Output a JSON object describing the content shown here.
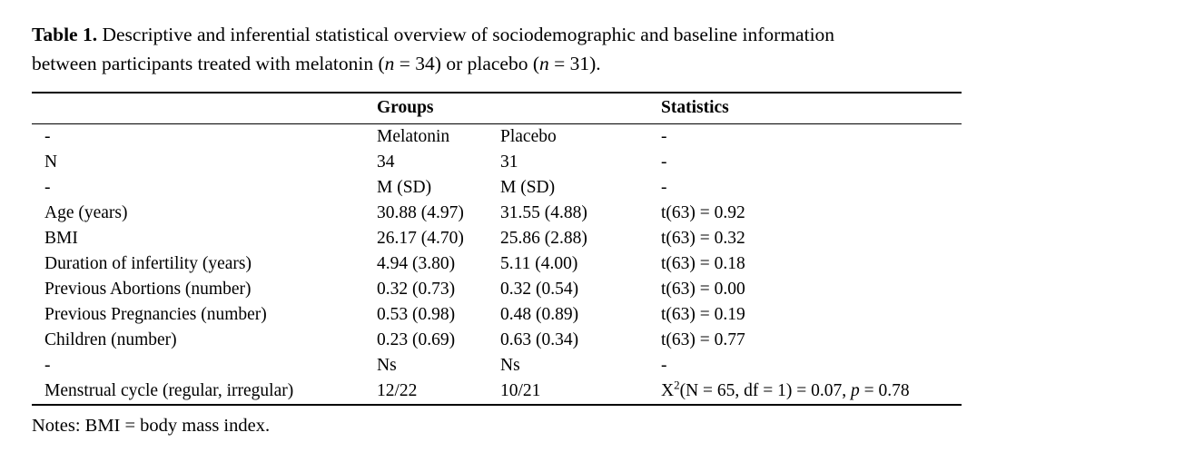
{
  "caption": {
    "bold_label": "Table 1.",
    "line1_rest": " Descriptive and inferential statistical overview of sociodemographic and baseline information",
    "line2_part1": "between participants treated with melatonin (",
    "n1": "n",
    "line2_part2": " = 34) or placebo (",
    "n2": "n",
    "line2_part3": " = 31)."
  },
  "table": {
    "header": {
      "groups": "Groups",
      "statistics": "Statistics"
    },
    "rows": [
      {
        "label": "-",
        "melatonin": "Melatonin",
        "placebo": "Placebo",
        "stat": "-"
      },
      {
        "label": "N",
        "melatonin": "34",
        "placebo": "31",
        "stat": "-"
      },
      {
        "label": "-",
        "melatonin": "M (SD)",
        "placebo": "M (SD)",
        "stat": "-"
      },
      {
        "label": "Age (years)",
        "melatonin": "30.88 (4.97)",
        "placebo": "31.55 (4.88)",
        "stat": "t(63) = 0.92"
      },
      {
        "label": "BMI",
        "melatonin": "26.17 (4.70)",
        "placebo": "25.86 (2.88)",
        "stat": "t(63) = 0.32"
      },
      {
        "label": "Duration of infertility (years)",
        "melatonin": "4.94 (3.80)",
        "placebo": "5.11 (4.00)",
        "stat": "t(63) = 0.18"
      },
      {
        "label": "Previous Abortions (number)",
        "melatonin": "0.32 (0.73)",
        "placebo": "0.32 (0.54)",
        "stat": "t(63) = 0.00"
      },
      {
        "label": "Previous Pregnancies (number)",
        "melatonin": "0.53 (0.98)",
        "placebo": "0.48 (0.89)",
        "stat": "t(63) = 0.19"
      },
      {
        "label": "Children (number)",
        "melatonin": "0.23 (0.69)",
        "placebo": "0.63 (0.34)",
        "stat": "t(63) = 0.77"
      },
      {
        "label": "-",
        "melatonin": "Ns",
        "placebo": "Ns",
        "stat": "-"
      },
      {
        "label": "Menstrual cycle (regular, irregular)",
        "melatonin": "12/22",
        "placebo": "10/21",
        "stat_parts": {
          "base": "X",
          "sup": "2",
          "mid": "(N = 65, df = 1) = 0.07, ",
          "p_italic": "p",
          "end": " = 0.78"
        }
      }
    ]
  },
  "notes": {
    "text": "Notes: BMI = body mass index."
  }
}
